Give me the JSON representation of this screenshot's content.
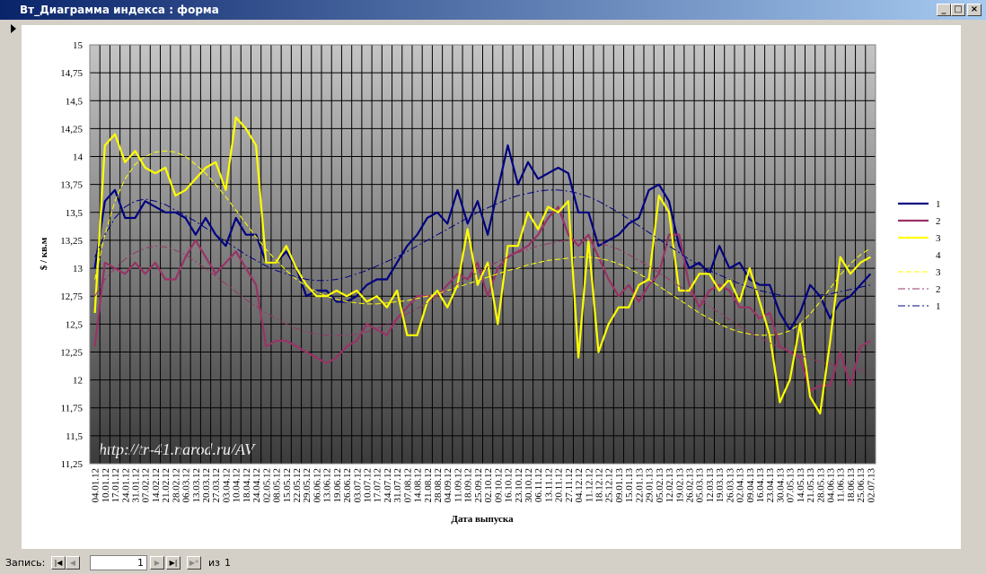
{
  "window": {
    "title": "Вт_Диаграмма индекса : форма"
  },
  "chart_data": {
    "type": "line",
    "y_label": "$ / кв.м",
    "x_label": "Дата выпуска",
    "watermark": "http://tr-41.narod.ru/AV",
    "categories": [
      "04.01.12",
      "10.01.12",
      "17.01.12",
      "24.01.12",
      "31.01.12",
      "07.02.12",
      "14.02.12",
      "21.02.12",
      "28.02.12",
      "06.03.12",
      "13.03.12",
      "20.03.12",
      "27.03.12",
      "03.04.12",
      "10.04.12",
      "18.04.12",
      "24.04.12",
      "02.05.12",
      "08.05.12",
      "15.05.12",
      "22.05.12",
      "29.05.12",
      "06.06.12",
      "13.06.12",
      "19.06.12",
      "26.06.12",
      "03.07.12",
      "10.07.12",
      "17.07.12",
      "24.07.12",
      "31.07.12",
      "07.08.12",
      "14.08.12",
      "21.08.12",
      "28.08.12",
      "04.09.12",
      "11.09.12",
      "18.09.12",
      "25.09.12",
      "02.10.12",
      "09.10.12",
      "16.10.12",
      "23.10.12",
      "30.10.12",
      "06.11.12",
      "13.11.12",
      "20.11.12",
      "27.11.12",
      "04.12.12",
      "11.12.12",
      "18.12.12",
      "25.12.12",
      "09.01.13",
      "15.01.13",
      "22.01.13",
      "29.01.13",
      "05.02.13",
      "12.02.13",
      "19.02.13",
      "26.02.13",
      "05.03.13",
      "12.03.13",
      "19.03.13",
      "26.03.13",
      "02.04.13",
      "09.04.13",
      "16.04.13",
      "23.04.13",
      "30.04.13",
      "07.05.13",
      "14.05.13",
      "21.05.13",
      "28.05.13",
      "04.06.13",
      "11.06.13",
      "18.06.13",
      "25.06.13",
      "02.07.13"
    ],
    "ylim": [
      11.25,
      15
    ],
    "yticks": [
      {
        "value": 11.25,
        "label": "11,25"
      },
      {
        "value": 11.5,
        "label": "11,5"
      },
      {
        "value": 11.75,
        "label": "11,75"
      },
      12,
      {
        "value": 12.25,
        "label": "12,25"
      },
      {
        "value": 12.5,
        "label": "12,5"
      },
      {
        "value": 12.75,
        "label": "12,75"
      },
      13,
      {
        "value": 13.25,
        "label": "13,25"
      },
      {
        "value": 13.5,
        "label": "13,5"
      },
      {
        "value": 13.75,
        "label": "13,75"
      },
      14,
      {
        "value": 14.25,
        "label": "14,25"
      },
      {
        "value": 14.5,
        "label": "14,5"
      },
      {
        "value": 14.75,
        "label": "14,75"
      },
      15
    ],
    "grid": true,
    "legend": "right",
    "series": [
      {
        "name": "1",
        "color": "#000080",
        "style": "solid",
        "values": [
          13.0,
          13.6,
          13.7,
          13.45,
          13.45,
          13.6,
          13.55,
          13.5,
          13.5,
          13.45,
          13.3,
          13.45,
          13.3,
          13.2,
          13.45,
          13.3,
          13.3,
          13.05,
          13.05,
          13.15,
          13.0,
          12.75,
          12.8,
          12.8,
          12.7,
          12.7,
          12.75,
          12.85,
          12.9,
          12.9,
          13.05,
          13.2,
          13.3,
          13.45,
          13.5,
          13.4,
          13.7,
          13.4,
          13.6,
          13.3,
          13.7,
          14.1,
          13.75,
          13.95,
          13.8,
          13.85,
          13.9,
          13.85,
          13.5,
          13.5,
          13.2,
          13.25,
          13.3,
          13.4,
          13.45,
          13.7,
          13.75,
          13.6,
          13.2,
          13.0,
          13.05,
          12.95,
          13.2,
          13.0,
          13.05,
          12.9,
          12.85,
          12.85,
          12.6,
          12.45,
          12.6,
          12.85,
          12.75,
          12.55,
          12.7,
          12.75,
          12.85,
          12.95
        ]
      },
      {
        "name": "2",
        "color": "#993366",
        "style": "solid",
        "values": [
          12.3,
          13.05,
          13.0,
          12.95,
          13.05,
          12.95,
          13.05,
          12.9,
          12.9,
          13.1,
          13.25,
          13.1,
          12.95,
          13.05,
          13.15,
          13.0,
          12.85,
          12.3,
          12.35,
          12.35,
          12.3,
          12.25,
          12.2,
          12.15,
          12.2,
          12.3,
          12.35,
          12.5,
          12.45,
          12.4,
          12.55,
          12.65,
          12.75,
          12.75,
          12.75,
          12.85,
          12.95,
          12.9,
          13.05,
          12.75,
          13.0,
          13.1,
          13.15,
          13.2,
          13.3,
          13.45,
          13.55,
          13.3,
          13.2,
          13.3,
          13.1,
          12.9,
          12.75,
          12.85,
          12.7,
          12.85,
          12.95,
          13.3,
          13.3,
          12.85,
          12.65,
          12.8,
          12.85,
          12.8,
          12.65,
          12.65,
          12.55,
          12.6,
          12.3,
          12.25,
          12.2,
          11.9,
          11.95,
          11.95,
          12.25,
          11.95,
          12.3,
          12.35
        ]
      },
      {
        "name": "3",
        "color": "#ffff00",
        "style": "solid",
        "values": [
          12.6,
          14.1,
          14.2,
          13.95,
          14.05,
          13.9,
          13.85,
          13.9,
          13.65,
          13.7,
          13.8,
          13.9,
          13.95,
          13.7,
          14.35,
          14.25,
          14.1,
          13.05,
          13.05,
          13.2,
          13.0,
          12.85,
          12.75,
          12.75,
          12.8,
          12.75,
          12.8,
          12.7,
          12.75,
          12.65,
          12.8,
          12.4,
          12.4,
          12.7,
          12.8,
          12.65,
          12.85,
          13.35,
          12.85,
          13.05,
          12.5,
          13.2,
          13.2,
          13.5,
          13.35,
          13.55,
          13.5,
          13.6,
          12.2,
          13.25,
          12.25,
          12.5,
          12.65,
          12.65,
          12.85,
          12.9,
          13.65,
          13.5,
          12.8,
          12.8,
          12.95,
          12.95,
          12.8,
          12.9,
          12.7,
          13.0,
          12.7,
          12.4,
          11.8,
          12.0,
          12.5,
          11.85,
          11.7,
          12.35,
          13.1,
          12.95,
          13.05,
          13.1
        ]
      },
      {
        "name": "4",
        "color": null,
        "style": "solid",
        "values": [
          null,
          null,
          null,
          null,
          null,
          null,
          null,
          null,
          null,
          null,
          null,
          null,
          null,
          null,
          null,
          null,
          null,
          null,
          null,
          null,
          null,
          null,
          null,
          null,
          null,
          null,
          null,
          null,
          null,
          null,
          null,
          null,
          null,
          null,
          null,
          null,
          null,
          null,
          null,
          null,
          null,
          null,
          null,
          null,
          null,
          null,
          null,
          null,
          null,
          null,
          null,
          null,
          null,
          null,
          null,
          null,
          null,
          null,
          null,
          null,
          null,
          null,
          null,
          null,
          null,
          null,
          null,
          null,
          null,
          null,
          null,
          null,
          null,
          null,
          null,
          null,
          null,
          null
        ]
      },
      {
        "name": "3",
        "color": "#ffff00",
        "style": "dash",
        "values": [
          12.9,
          13.3,
          13.6,
          13.8,
          13.93,
          14.0,
          14.04,
          14.05,
          14.04,
          14.0,
          13.93,
          13.85,
          13.75,
          13.64,
          13.52,
          13.4,
          13.28,
          13.17,
          13.07,
          12.98,
          12.9,
          12.84,
          12.79,
          12.75,
          12.72,
          12.7,
          12.69,
          12.68,
          12.68,
          12.69,
          12.7,
          12.71,
          12.73,
          12.75,
          12.77,
          12.8,
          12.83,
          12.86,
          12.89,
          12.92,
          12.95,
          12.98,
          13.0,
          13.03,
          13.05,
          13.07,
          13.08,
          13.09,
          13.1,
          13.1,
          13.09,
          13.07,
          13.04,
          13.0,
          12.95,
          12.9,
          12.84,
          12.78,
          12.72,
          12.66,
          12.6,
          12.55,
          12.5,
          12.46,
          12.43,
          12.41,
          12.4,
          12.4,
          12.41,
          12.44,
          12.5,
          12.59,
          12.7,
          12.82,
          12.94,
          13.04,
          13.12,
          13.18
        ]
      },
      {
        "name": "2",
        "color": "#993366",
        "style": "dashdot",
        "values": [
          12.75,
          12.9,
          13.0,
          13.08,
          13.14,
          13.18,
          13.2,
          13.19,
          13.16,
          13.12,
          13.06,
          13.0,
          12.93,
          12.86,
          12.79,
          12.72,
          12.66,
          12.6,
          12.55,
          12.5,
          12.46,
          12.43,
          12.41,
          12.4,
          12.4,
          12.4,
          12.41,
          12.43,
          12.46,
          12.5,
          12.54,
          12.59,
          12.64,
          12.69,
          12.75,
          12.8,
          12.86,
          12.91,
          12.96,
          13.01,
          13.06,
          13.1,
          13.14,
          13.17,
          13.2,
          13.22,
          13.24,
          13.25,
          13.25,
          13.25,
          13.23,
          13.2,
          13.17,
          13.12,
          13.07,
          13.02,
          12.96,
          12.9,
          12.84,
          12.78,
          12.72,
          12.66,
          12.6,
          12.54,
          12.48,
          12.43,
          12.38,
          12.33,
          12.29,
          12.25,
          12.22,
          12.19,
          12.16,
          12.14,
          12.12,
          12.1,
          12.09,
          12.08
        ]
      },
      {
        "name": "1",
        "color": "#000080",
        "style": "dashdot",
        "values": [
          13.1,
          13.3,
          13.45,
          13.55,
          13.6,
          13.62,
          13.6,
          13.57,
          13.52,
          13.47,
          13.42,
          13.36,
          13.3,
          13.24,
          13.18,
          13.12,
          13.07,
          13.02,
          12.98,
          12.95,
          12.92,
          12.9,
          12.89,
          12.89,
          12.9,
          12.92,
          12.95,
          12.98,
          13.02,
          13.06,
          13.1,
          13.15,
          13.2,
          13.25,
          13.3,
          13.35,
          13.4,
          13.45,
          13.5,
          13.54,
          13.58,
          13.62,
          13.65,
          13.67,
          13.69,
          13.7,
          13.7,
          13.69,
          13.67,
          13.64,
          13.6,
          13.55,
          13.5,
          13.44,
          13.38,
          13.32,
          13.26,
          13.2,
          13.14,
          13.08,
          13.03,
          12.98,
          12.94,
          12.9,
          12.86,
          12.83,
          12.8,
          12.78,
          12.76,
          12.75,
          12.75,
          12.75,
          12.76,
          12.77,
          12.79,
          12.81,
          12.83,
          12.85
        ]
      }
    ]
  },
  "record": {
    "label": "Запись:",
    "current": "1",
    "of": "из",
    "total": "1"
  }
}
